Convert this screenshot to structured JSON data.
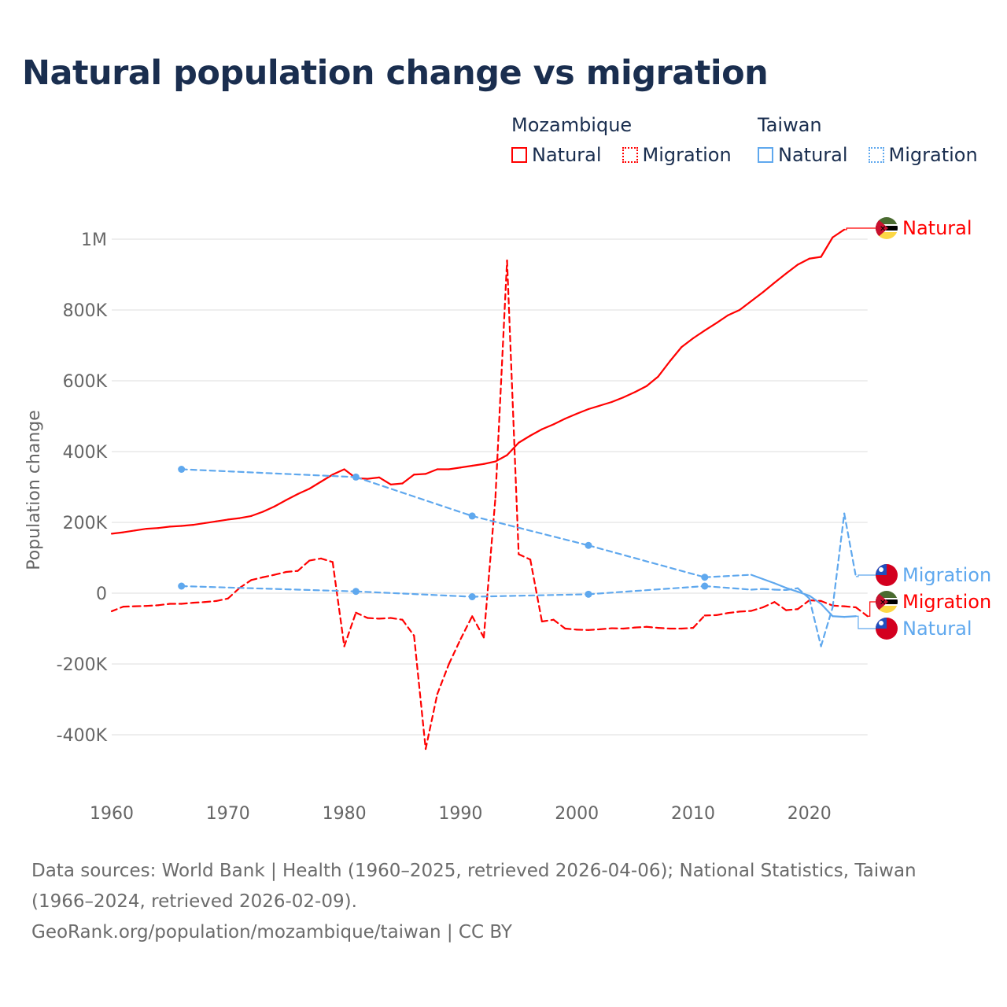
{
  "title": "Natural population change vs migration",
  "legend": {
    "groups": [
      {
        "name": "Mozambique",
        "color": "#ff0000",
        "items": [
          "Natural",
          "Migration"
        ]
      },
      {
        "name": "Taiwan",
        "color": "#5fa8ee",
        "items": [
          "Natural",
          "Migration"
        ]
      }
    ]
  },
  "footer": {
    "sources": "Data sources: World Bank | Health (1960–2025, retrieved 2026-04-06); National Statistics, Taiwan (1966–2024, retrieved 2026-02-09).",
    "credit": "GeoRank.org/population/mozambique/taiwan | CC BY"
  },
  "chart_data": {
    "type": "line",
    "title": "Natural population change vs migration",
    "xlabel": "",
    "ylabel": "Population change",
    "xlim": [
      1960,
      2025
    ],
    "ylim": [
      -450000,
      1050000
    ],
    "x_ticks": [
      1960,
      1970,
      1980,
      1990,
      2000,
      2010,
      2020
    ],
    "x_tick_labels": [
      "1960",
      "1970",
      "1980",
      "1990",
      "2000",
      "2010",
      "2020"
    ],
    "y_ticks": [
      -400000,
      -200000,
      0,
      200000,
      400000,
      600000,
      800000,
      1000000
    ],
    "y_tick_labels": [
      "-400K",
      "-200K",
      "0",
      "200K",
      "400K",
      "600K",
      "800K",
      "1M"
    ],
    "grid": true,
    "series": [
      {
        "name": "Mozambique Natural",
        "label": "Natural",
        "country": "Mozambique",
        "color": "#ff0000",
        "dashed": false,
        "x": [
          1960,
          1961,
          1962,
          1963,
          1964,
          1965,
          1966,
          1967,
          1968,
          1969,
          1970,
          1971,
          1972,
          1973,
          1974,
          1975,
          1976,
          1977,
          1978,
          1979,
          1980,
          1981,
          1982,
          1983,
          1984,
          1985,
          1986,
          1987,
          1988,
          1989,
          1990,
          1991,
          1992,
          1993,
          1994,
          1995,
          1996,
          1997,
          1998,
          1999,
          2000,
          2001,
          2002,
          2003,
          2004,
          2005,
          2006,
          2007,
          2008,
          2009,
          2010,
          2011,
          2012,
          2013,
          2014,
          2015,
          2016,
          2017,
          2018,
          2019,
          2020,
          2021,
          2022,
          2023
        ],
        "y": [
          168000,
          172000,
          177000,
          182000,
          184000,
          188000,
          190000,
          193000,
          198000,
          203000,
          208000,
          212000,
          218000,
          230000,
          245000,
          263000,
          280000,
          295000,
          315000,
          335000,
          350000,
          325000,
          323000,
          327000,
          307000,
          310000,
          335000,
          337000,
          350000,
          350000,
          355000,
          360000,
          365000,
          372000,
          390000,
          425000,
          445000,
          463000,
          477000,
          493000,
          507000,
          520000,
          530000,
          540000,
          553000,
          568000,
          585000,
          612000,
          655000,
          695000,
          720000,
          742000,
          763000,
          785000,
          800000,
          825000,
          850000,
          877000,
          903000,
          928000,
          945000,
          950000,
          1005000,
          1027000
        ]
      },
      {
        "name": "Mozambique Migration",
        "label": "Migration",
        "country": "Mozambique",
        "color": "#ff0000",
        "dashed": true,
        "x": [
          1960,
          1961,
          1962,
          1963,
          1964,
          1965,
          1966,
          1967,
          1968,
          1969,
          1970,
          1971,
          1972,
          1973,
          1974,
          1975,
          1976,
          1977,
          1978,
          1979,
          1980,
          1981,
          1982,
          1983,
          1984,
          1985,
          1986,
          1987,
          1988,
          1989,
          1990,
          1991,
          1992,
          1993,
          1994,
          1995,
          1996,
          1997,
          1998,
          1999,
          2000,
          2001,
          2002,
          2003,
          2004,
          2005,
          2006,
          2007,
          2008,
          2009,
          2010,
          2011,
          2012,
          2013,
          2014,
          2015,
          2016,
          2017,
          2018,
          2019,
          2020,
          2021,
          2022,
          2023,
          2024,
          2025
        ],
        "y": [
          -51000,
          -38000,
          -37000,
          -36000,
          -34000,
          -30000,
          -30000,
          -27000,
          -25000,
          -22000,
          -15000,
          15000,
          37000,
          45000,
          52000,
          60000,
          63000,
          92000,
          98000,
          88000,
          -150000,
          -55000,
          -70000,
          -72000,
          -70000,
          -75000,
          -120000,
          -440000,
          -285000,
          -200000,
          -130000,
          -65000,
          -125000,
          270000,
          940000,
          110000,
          95000,
          -80000,
          -75000,
          -100000,
          -103000,
          -104000,
          -102000,
          -99000,
          -100000,
          -97000,
          -95000,
          -98000,
          -100000,
          -100000,
          -98000,
          -63000,
          -62000,
          -56000,
          -52000,
          -50000,
          -40000,
          -25000,
          -48000,
          -45000,
          -20000,
          -22000,
          -35000,
          -37000,
          -40000,
          -65000
        ]
      },
      {
        "name": "Taiwan Natural",
        "label": "Natural",
        "country": "Taiwan",
        "color": "#5fa8ee",
        "dashed": false,
        "x": [
          1966,
          1981,
          1991,
          2001,
          2011,
          2015,
          2016,
          2017,
          2018,
          2019,
          2020,
          2021,
          2022,
          2023,
          2024
        ],
        "y": [
          350000,
          328000,
          218000,
          135000,
          45000,
          52000,
          40000,
          28000,
          15000,
          4000,
          -7000,
          -30000,
          -65000,
          -67000,
          -65000
        ]
      },
      {
        "name": "Taiwan Migration",
        "label": "Migration",
        "country": "Taiwan",
        "color": "#5fa8ee",
        "dashed": true,
        "x": [
          1966,
          1981,
          1991,
          2001,
          2011,
          2015,
          2016,
          2017,
          2018,
          2019,
          2020,
          2021,
          2022,
          2023,
          2024
        ],
        "y": [
          20000,
          5000,
          -10000,
          -3000,
          20000,
          10000,
          12000,
          10000,
          9000,
          14000,
          -15000,
          -150000,
          -40000,
          225000,
          47000
        ]
      }
    ]
  }
}
